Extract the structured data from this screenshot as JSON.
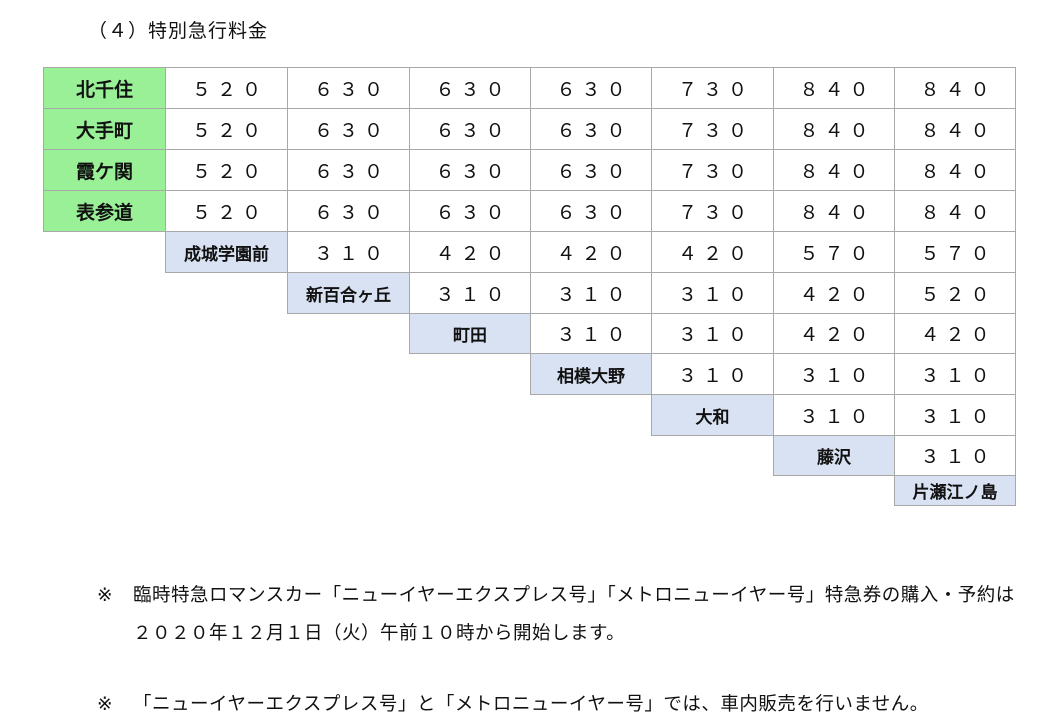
{
  "title": "（４）特別急行料金",
  "fare_table": {
    "origin_rows": [
      {
        "station": "北千住",
        "fares": [
          "５２０",
          "６３０",
          "６３０",
          "６３０",
          "７３０",
          "８４０",
          "８４０"
        ]
      },
      {
        "station": "大手町",
        "fares": [
          "５２０",
          "６３０",
          "６３０",
          "６３０",
          "７３０",
          "８４０",
          "８４０"
        ]
      },
      {
        "station": "霞ケ関",
        "fares": [
          "５２０",
          "６３０",
          "６３０",
          "６３０",
          "７３０",
          "８４０",
          "８４０"
        ]
      },
      {
        "station": "表参道",
        "fares": [
          "５２０",
          "６３０",
          "６３０",
          "６３０",
          "７３０",
          "８４０",
          "８４０"
        ]
      }
    ],
    "stair_rows": [
      {
        "station": "成城学園前",
        "fares": [
          "３１０",
          "４２０",
          "４２０",
          "４２０",
          "５７０",
          "５７０"
        ]
      },
      {
        "station": "新百合ヶ丘",
        "fares": [
          "３１０",
          "３１０",
          "３１０",
          "４２０",
          "５２０"
        ]
      },
      {
        "station": "町田",
        "fares": [
          "３１０",
          "３１０",
          "４２０",
          "４２０"
        ]
      },
      {
        "station": "相模大野",
        "fares": [
          "３１０",
          "３１０",
          "３１０"
        ]
      },
      {
        "station": "大和",
        "fares": [
          "３１０",
          "３１０"
        ]
      },
      {
        "station": "藤沢",
        "fares": [
          "３１０"
        ]
      },
      {
        "station": "片瀬江ノ島",
        "fares": []
      }
    ],
    "colors": {
      "origin_header": "#99f097",
      "station_header": "#d9e2f3",
      "border": "#a8a8a8"
    }
  },
  "notes": [
    {
      "mark": "※",
      "text": "臨時特急ロマンスカー「ニューイヤーエクスプレス号」「メトロニューイヤー号」特急券の購入・予約は２０２０年１２月１日（火）午前１０時から開始します。"
    },
    {
      "mark": "※",
      "text": "「ニューイヤーエクスプレス号」と「メトロニューイヤー号」では、車内販売を行いません。"
    }
  ]
}
